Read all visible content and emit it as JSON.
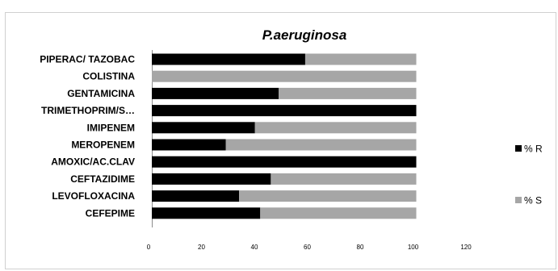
{
  "chart_data": {
    "type": "bar",
    "orientation": "horizontal",
    "stacked": true,
    "title": "P.aeruginosa",
    "categories": [
      "PIPERAC/ TAZOBAC",
      "COLISTINA",
      "GENTAMICINA",
      "TRIMETHOPRIM/S…",
      "IMIPENEM",
      "MEROPENEM",
      "AMOXIC/AC.CLAV",
      "CEFTAZIDIME",
      "LEVOFLOXACINA",
      "CEFEPIME"
    ],
    "series": [
      {
        "name": "% R",
        "color": "#000000",
        "values": [
          58,
          0,
          48,
          100,
          39,
          28,
          100,
          45,
          33,
          41
        ]
      },
      {
        "name": "% S",
        "color": "#a6a6a6",
        "values": [
          42,
          100,
          52,
          0,
          61,
          72,
          0,
          55,
          67,
          59
        ]
      }
    ],
    "xlim": [
      0,
      120
    ],
    "xticks": [
      "0",
      "20",
      "40",
      "60",
      "80",
      "100",
      "120"
    ],
    "grid": false,
    "legend_position": "right"
  }
}
